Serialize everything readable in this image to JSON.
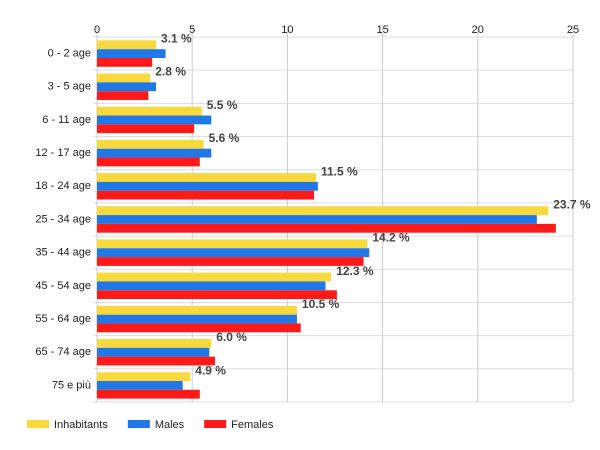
{
  "chart_data": {
    "type": "hbar",
    "categories": [
      "0 - 2 age",
      "3 - 5 age",
      "6 - 11 age",
      "12 - 17 age",
      "18 - 24 age",
      "25 - 34 age",
      "35 - 44 age",
      "45 - 54 age",
      "55 - 64 age",
      "65 - 74 age",
      "75 e più"
    ],
    "series": [
      {
        "name": "Inhabitants",
        "color": "#f9d93b",
        "values": [
          3.1,
          2.8,
          5.5,
          5.6,
          11.5,
          23.7,
          14.2,
          12.3,
          10.5,
          6.0,
          4.9
        ],
        "value_labels": [
          "3.1 %",
          "2.8 %",
          "5.5 %",
          "5.6 %",
          "11.5 %",
          "23.7 %",
          "14.2 %",
          "12.3 %",
          "10.5 %",
          "6.0 %",
          "4.9 %"
        ]
      },
      {
        "name": "Males",
        "color": "#1f77e8",
        "values": [
          3.6,
          3.1,
          6.0,
          6.0,
          11.6,
          23.1,
          14.3,
          12.0,
          10.5,
          5.9,
          4.5
        ]
      },
      {
        "name": "Females",
        "color": "#ff1a1a",
        "values": [
          2.9,
          2.7,
          5.1,
          5.4,
          11.4,
          24.1,
          14.0,
          12.6,
          10.7,
          6.2,
          5.4
        ]
      }
    ],
    "xlim": [
      0,
      25
    ],
    "xticks": [
      0,
      5,
      10,
      15,
      20,
      25
    ],
    "grid": true,
    "legend": "bottom"
  }
}
